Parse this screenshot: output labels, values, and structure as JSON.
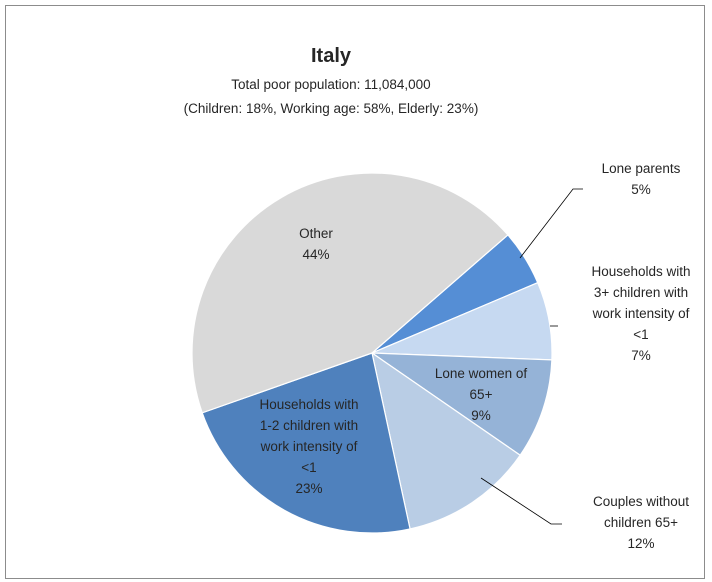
{
  "chart_data": {
    "type": "pie",
    "title": "Italy",
    "subtitle_lines": [
      "Total poor population: 11,084,000",
      "(Children: 18%, Working age: 58%, Elderly: 23%)"
    ],
    "slices": [
      {
        "label_lines": [
          "Lone parents"
        ],
        "value": 5,
        "value_label": "5%",
        "color": "#558ed5"
      },
      {
        "label_lines": [
          "Households with",
          "3+ children with",
          "work intensity of",
          "<1"
        ],
        "value": 7,
        "value_label": "7%",
        "color": "#c6d9f1"
      },
      {
        "label_lines": [
          "Lone women of",
          "65+"
        ],
        "value": 9,
        "value_label": "9%",
        "color": "#95b3d7"
      },
      {
        "label_lines": [
          "Couples without",
          "children 65+"
        ],
        "value": 12,
        "value_label": "12%",
        "color": "#b9cde5"
      },
      {
        "label_lines": [
          "Households with",
          "1-2 children with",
          "work intensity of",
          "<1"
        ],
        "value": 23,
        "value_label": "23%",
        "color": "#4f81bd"
      },
      {
        "label_lines": [
          "Other"
        ],
        "value": 44,
        "value_label": "44%",
        "color": "#d9d9d9"
      }
    ]
  }
}
